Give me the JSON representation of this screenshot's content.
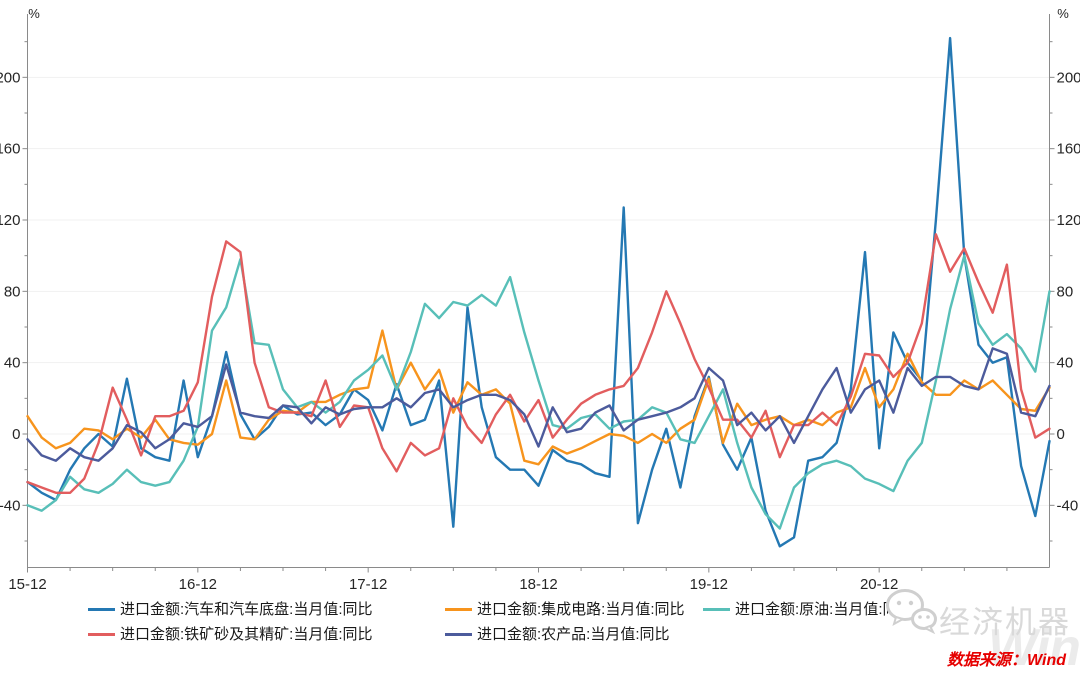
{
  "chart_data": {
    "type": "line",
    "title": "",
    "x_start": "2015-12",
    "x_end": "2021-12",
    "months_span": 72,
    "xtick_labels": [
      "15-12",
      "16-12",
      "17-12",
      "18-12",
      "19-12",
      "20-12"
    ],
    "xtick_month_indices": [
      0,
      12,
      24,
      36,
      48,
      60
    ],
    "ylabel_left": "%",
    "ylabel_right": "%",
    "yticks": [
      -40,
      0,
      40,
      80,
      120,
      160,
      200
    ],
    "ylim": [
      -75,
      232
    ],
    "grid": "horizontal",
    "legend_position": "bottom",
    "axis_color": "#8a8a8a",
    "grid_color": "#f1f1f1",
    "tick_label_color": "#262626",
    "series": [
      {
        "name": "进口金额:汽车和汽车底盘:当月值:同比",
        "color": "#2478b3",
        "values": [
          -27,
          -33,
          -37,
          -20,
          -8,
          0,
          -7,
          31,
          -8,
          -13,
          -15,
          30,
          -13,
          10,
          46,
          11,
          -3,
          4,
          16,
          11,
          12,
          5,
          11,
          25,
          19,
          2,
          28,
          5,
          8,
          30,
          -52,
          71,
          15,
          -13,
          -20,
          -20,
          -29,
          -9,
          -15,
          -17,
          -22,
          -24,
          127,
          -50,
          -20,
          3,
          -30,
          10,
          32,
          -6,
          -20,
          -2,
          -43,
          -63,
          -58,
          -15,
          -13,
          -5,
          25,
          102,
          -8,
          57,
          40,
          30,
          120,
          222,
          100,
          50,
          40,
          43,
          -18,
          -46,
          -4
        ]
      },
      {
        "name": "进口金额:集成电路:当月值:同比",
        "color": "#f7941d",
        "values": [
          10,
          -2,
          -8,
          -5,
          3,
          2,
          -3,
          3,
          -2,
          8,
          -3,
          -5,
          -6,
          0,
          30,
          -2,
          -3,
          8,
          13,
          12,
          18,
          18,
          22,
          25,
          26,
          58,
          25,
          40,
          25,
          36,
          12,
          29,
          22,
          25,
          17,
          -15,
          -17,
          -7,
          -11,
          -8,
          -4,
          0,
          -1,
          -5,
          0,
          -5,
          3,
          8,
          31,
          -5,
          17,
          5,
          8,
          10,
          5,
          8,
          5,
          12,
          15,
          37,
          15,
          25,
          45,
          29,
          22,
          22,
          30,
          25,
          30,
          22,
          14,
          13,
          26
        ]
      },
      {
        "name": "进口金额:原油:当月值:同比",
        "color": "#58bfb8",
        "values": [
          -40,
          -43,
          -37,
          -24,
          -31,
          -33,
          -28,
          -20,
          -27,
          -29,
          -27,
          -15,
          4,
          58,
          71,
          98,
          51,
          50,
          25,
          15,
          18,
          12,
          18,
          30,
          36,
          44,
          25,
          46,
          73,
          65,
          74,
          72,
          78,
          72,
          88,
          57,
          30,
          5,
          3,
          9,
          11,
          3,
          7,
          8,
          15,
          12,
          -3,
          -5,
          10,
          25,
          -5,
          -30,
          -45,
          -53,
          -30,
          -22,
          -17,
          -15,
          -18,
          -25,
          -28,
          -32,
          -15,
          -5,
          30,
          70,
          100,
          62,
          50,
          56,
          48,
          35,
          80
        ]
      },
      {
        "name": "进口金额:铁矿砂及其精矿:当月值:同比",
        "color": "#e25d5e",
        "values": [
          -27,
          -30,
          -33,
          -33,
          -25,
          -5,
          26,
          8,
          -12,
          10,
          10,
          13,
          29,
          77,
          108,
          102,
          40,
          15,
          12,
          12,
          10,
          30,
          4,
          16,
          15,
          -8,
          -21,
          -5,
          -12,
          -8,
          20,
          4,
          -5,
          11,
          22,
          7,
          19,
          -2,
          8,
          17,
          22,
          25,
          27,
          37,
          57,
          80,
          62,
          42,
          26,
          8,
          8,
          -2,
          13,
          -13,
          5,
          5,
          12,
          5,
          21,
          45,
          44,
          32,
          40,
          62,
          112,
          91,
          104,
          85,
          68,
          95,
          25,
          -2,
          3
        ]
      },
      {
        "name": "进口金额:农产品:当月值:同比",
        "color": "#4c5b9c",
        "values": [
          -3,
          -12,
          -15,
          -8,
          -13,
          -15,
          -8,
          5,
          1,
          -8,
          -3,
          6,
          4,
          10,
          39,
          12,
          10,
          9,
          16,
          15,
          6,
          15,
          11,
          14,
          15,
          15,
          20,
          15,
          23,
          25,
          15,
          19,
          22,
          22,
          19,
          11,
          -7,
          15,
          1,
          3,
          12,
          16,
          2,
          8,
          10,
          12,
          15,
          20,
          37,
          30,
          5,
          12,
          2,
          10,
          -5,
          10,
          25,
          37,
          12,
          25,
          30,
          12,
          37,
          27,
          32,
          32,
          27,
          25,
          48,
          45,
          12,
          10,
          27
        ]
      }
    ]
  },
  "legend": {
    "layout_rows": [
      [
        0,
        1,
        2
      ],
      [
        3,
        4
      ]
    ]
  },
  "footer": {
    "source_label": "数据来源：Wind"
  },
  "watermark": {
    "brand": "经济机器",
    "wind": "Wind"
  }
}
